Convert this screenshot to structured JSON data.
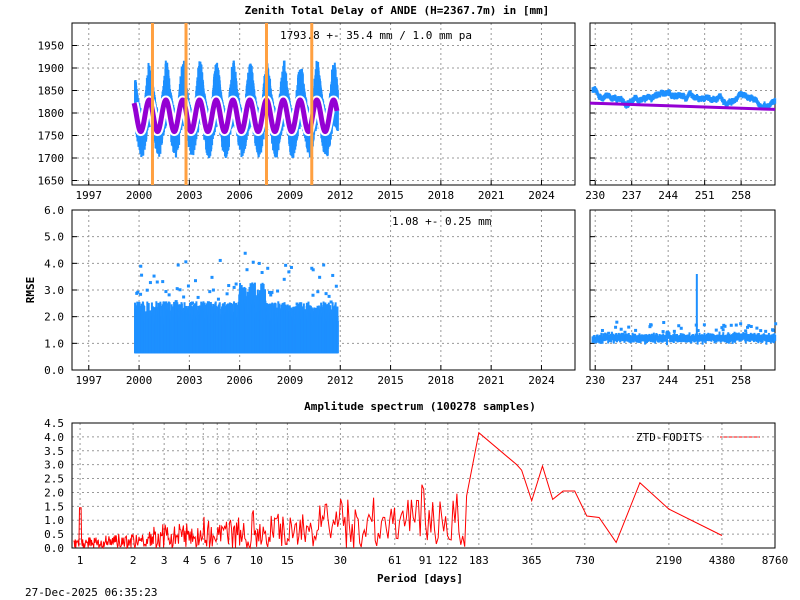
{
  "chart_data": [
    {
      "type": "scatter",
      "id": "ztd-long",
      "title": "Zenith Total Delay of ANDE (H=2367.7m) in [mm]",
      "annotation": "1793.8 +-  35.4 mm /  1.0 mm pa",
      "xlim": [
        1996,
        2026
      ],
      "ylim": [
        1640,
        2000
      ],
      "xticks": [
        "1997",
        "2000",
        "2003",
        "2006",
        "2009",
        "2012",
        "2015",
        "2018",
        "2021",
        "2024"
      ],
      "yticks": [
        "1650",
        "1700",
        "1750",
        "1800",
        "1850",
        "1900",
        "1950"
      ],
      "grid": true,
      "data_range": [
        1999.7,
        2011.8
      ],
      "fit": {
        "mean": 1793.8,
        "amplitude": 35,
        "period_years": 1,
        "trend_mm_pa": 1.0
      },
      "scatter_spread": [
        1695,
        1905
      ],
      "event_lines": [
        2000.8,
        2002.8,
        2007.6,
        2010.3
      ],
      "colors": {
        "data": "#1e90ff",
        "fit": "#9400d3",
        "events": "#ffa040"
      }
    },
    {
      "type": "scatter",
      "id": "ztd-recent",
      "xlim": [
        229,
        264.5
      ],
      "ylim": [
        1640,
        2000
      ],
      "xticks": [
        "230",
        "237",
        "244",
        "251",
        "258"
      ],
      "trend": [
        [
          229,
          1822
        ],
        [
          264.5,
          1808
        ]
      ],
      "colors": {
        "data": "#1e90ff",
        "fit": "#9400d3"
      }
    },
    {
      "type": "scatter",
      "id": "rmse-long",
      "ylabel": "RMSE",
      "annotation": "1.08 +-  0.25 mm",
      "xlim": [
        1996,
        2026
      ],
      "ylim": [
        0,
        6
      ],
      "xticks": [
        "1997",
        "2000",
        "2003",
        "2006",
        "2009",
        "2012",
        "2015",
        "2018",
        "2021",
        "2024"
      ],
      "yticks": [
        "0.0",
        "1.0",
        "2.0",
        "3.0",
        "4.0",
        "5.0",
        "6.0"
      ],
      "mean": 1.08,
      "std": 0.25,
      "colors": {
        "data": "#1e90ff"
      }
    },
    {
      "type": "scatter",
      "id": "rmse-recent",
      "xlim": [
        229,
        264.5
      ],
      "ylim": [
        0,
        6
      ],
      "xticks": [
        "230",
        "237",
        "244",
        "251",
        "258"
      ],
      "mean": 1.2,
      "spike": [
        249.5,
        3.6
      ],
      "colors": {
        "data": "#1e90ff"
      }
    },
    {
      "type": "line",
      "id": "spectrum",
      "title": "Amplitude spectrum (100278 samples)",
      "xlabel": "Period [days]",
      "xscale": "log",
      "xlim": [
        0.9,
        8760
      ],
      "ylim": [
        0,
        4.5
      ],
      "xticks": [
        "1",
        "2",
        "3",
        "4",
        "5",
        "6",
        "7",
        "10",
        "15",
        "30",
        "61",
        "91",
        "122",
        "183",
        "365",
        "730",
        "2190",
        "4380",
        "8760"
      ],
      "yticks": [
        "0.0",
        "0.5",
        "1.0",
        "1.5",
        "2.0",
        "2.5",
        "3.0",
        "3.5",
        "4.0",
        "4.5"
      ],
      "legend": {
        "label": "ZTD-FODITS",
        "position": "top-right"
      },
      "peaks": [
        [
          1.0,
          1.45
        ],
        [
          183,
          4.15
        ],
        [
          300,
          3.0
        ],
        [
          320,
          2.8
        ],
        [
          365,
          1.7
        ],
        [
          420,
          2.95
        ],
        [
          480,
          1.75
        ],
        [
          550,
          2.05
        ],
        [
          640,
          2.05
        ],
        [
          750,
          1.15
        ],
        [
          880,
          1.1
        ],
        [
          1100,
          0.2
        ],
        [
          1500,
          2.35
        ],
        [
          2190,
          1.4
        ],
        [
          4380,
          0.45
        ]
      ],
      "colors": {
        "line": "#ff0000"
      }
    }
  ],
  "footer": {
    "timestamp": "27-Dec-2025 06:35:23"
  }
}
